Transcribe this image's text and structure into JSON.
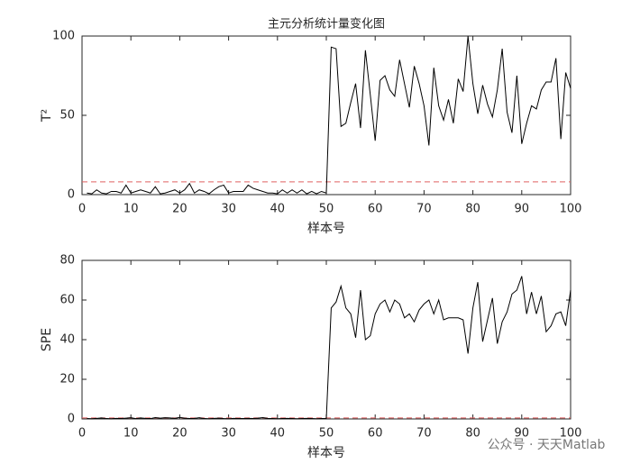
{
  "chart_data": [
    {
      "type": "line",
      "title": "主元分析统计量变化图",
      "xlabel": "样本号",
      "ylabel": "T²",
      "x": [
        1,
        2,
        3,
        4,
        5,
        6,
        7,
        8,
        9,
        10,
        11,
        12,
        13,
        14,
        15,
        16,
        17,
        18,
        19,
        20,
        21,
        22,
        23,
        24,
        25,
        26,
        27,
        28,
        29,
        30,
        31,
        32,
        33,
        34,
        35,
        36,
        37,
        38,
        39,
        40,
        41,
        42,
        43,
        44,
        45,
        46,
        47,
        48,
        49,
        50,
        51,
        52,
        53,
        54,
        55,
        56,
        57,
        58,
        59,
        60,
        61,
        62,
        63,
        64,
        65,
        66,
        67,
        68,
        69,
        70,
        71,
        72,
        73,
        74,
        75,
        76,
        77,
        78,
        79,
        80,
        81,
        82,
        83,
        84,
        85,
        86,
        87,
        88,
        89,
        90,
        91,
        92,
        93,
        94,
        95,
        96,
        97,
        98,
        99,
        100
      ],
      "series": [
        {
          "color": "#000000",
          "values": [
            1,
            0.5,
            3,
            1,
            0.5,
            2,
            2,
            1,
            6,
            1,
            2,
            3,
            2,
            1,
            5,
            0.5,
            1,
            2,
            3,
            1,
            3,
            7,
            1,
            3,
            2,
            0.5,
            3,
            5,
            6,
            1,
            2,
            2,
            2,
            6,
            4,
            3,
            2,
            1,
            1,
            0.5,
            3,
            1,
            3,
            1,
            3,
            0.5,
            2,
            0.5,
            2,
            1,
            93,
            92,
            43,
            45,
            58,
            70,
            42,
            91,
            63,
            34,
            72,
            75,
            66,
            62,
            85,
            70,
            55,
            81,
            70,
            56,
            31,
            80,
            56,
            47,
            60,
            45,
            73,
            65,
            100,
            70,
            51,
            69,
            57,
            49,
            66,
            92,
            52,
            39,
            75,
            32,
            45,
            56,
            54,
            66,
            71,
            71,
            86,
            35,
            77,
            67
          ]
        }
      ],
      "threshold": {
        "value": 8,
        "color": "#e06060"
      },
      "xlim": [
        0,
        100
      ],
      "xticks": [
        0,
        10,
        20,
        30,
        40,
        50,
        60,
        70,
        80,
        90,
        100
      ],
      "ylim": [
        0,
        100
      ],
      "yticks": [
        0,
        50,
        100
      ]
    },
    {
      "type": "line",
      "xlabel": "样本号",
      "ylabel": "SPE",
      "x": [
        1,
        2,
        3,
        4,
        5,
        6,
        7,
        8,
        9,
        10,
        11,
        12,
        13,
        14,
        15,
        16,
        17,
        18,
        19,
        20,
        21,
        22,
        23,
        24,
        25,
        26,
        27,
        28,
        29,
        30,
        31,
        32,
        33,
        34,
        35,
        36,
        37,
        38,
        39,
        40,
        41,
        42,
        43,
        44,
        45,
        46,
        47,
        48,
        49,
        50,
        51,
        52,
        53,
        54,
        55,
        56,
        57,
        58,
        59,
        60,
        61,
        62,
        63,
        64,
        65,
        66,
        67,
        68,
        69,
        70,
        71,
        72,
        73,
        74,
        75,
        76,
        77,
        78,
        79,
        80,
        81,
        82,
        83,
        84,
        85,
        86,
        87,
        88,
        89,
        90,
        91,
        92,
        93,
        94,
        95,
        96,
        97,
        98,
        99,
        100
      ],
      "series": [
        {
          "color": "#000000",
          "values": [
            0.2,
            0.1,
            0.3,
            0.5,
            0.2,
            0.1,
            0.3,
            0.2,
            0.4,
            0.6,
            0.2,
            0.5,
            0.3,
            0.2,
            0.7,
            0.4,
            0.6,
            0.5,
            0.3,
            0.8,
            0.4,
            0.2,
            0.3,
            0.6,
            0.2,
            0.1,
            0.3,
            0.4,
            0.2,
            0.1,
            0.3,
            0.2,
            0.2,
            0.3,
            0.2,
            0.4,
            0.7,
            0.3,
            0.2,
            0.1,
            0.2,
            0.3,
            0.2,
            0.1,
            0.2,
            0.3,
            0.2,
            0.1,
            0.2,
            0.3,
            56,
            59,
            67,
            56,
            53,
            41,
            65,
            40,
            42,
            53,
            58,
            60,
            54,
            60,
            58,
            51,
            53,
            49,
            55,
            58,
            60,
            53,
            60,
            50,
            51,
            51,
            51,
            50,
            33,
            56,
            69,
            39,
            50,
            61,
            38,
            49,
            54,
            63,
            65,
            72,
            53,
            64,
            53,
            62,
            44,
            47,
            53,
            54,
            47,
            65
          ]
        }
      ],
      "threshold": {
        "value": 0.5,
        "color": "#e06060"
      },
      "xlim": [
        0,
        100
      ],
      "xticks": [
        0,
        10,
        20,
        30,
        40,
        50,
        60,
        70,
        80,
        90,
        100
      ],
      "ylim": [
        0,
        80
      ],
      "yticks": [
        0,
        20,
        40,
        60,
        80
      ]
    }
  ],
  "watermark": "公众号 · 天天Matlab"
}
